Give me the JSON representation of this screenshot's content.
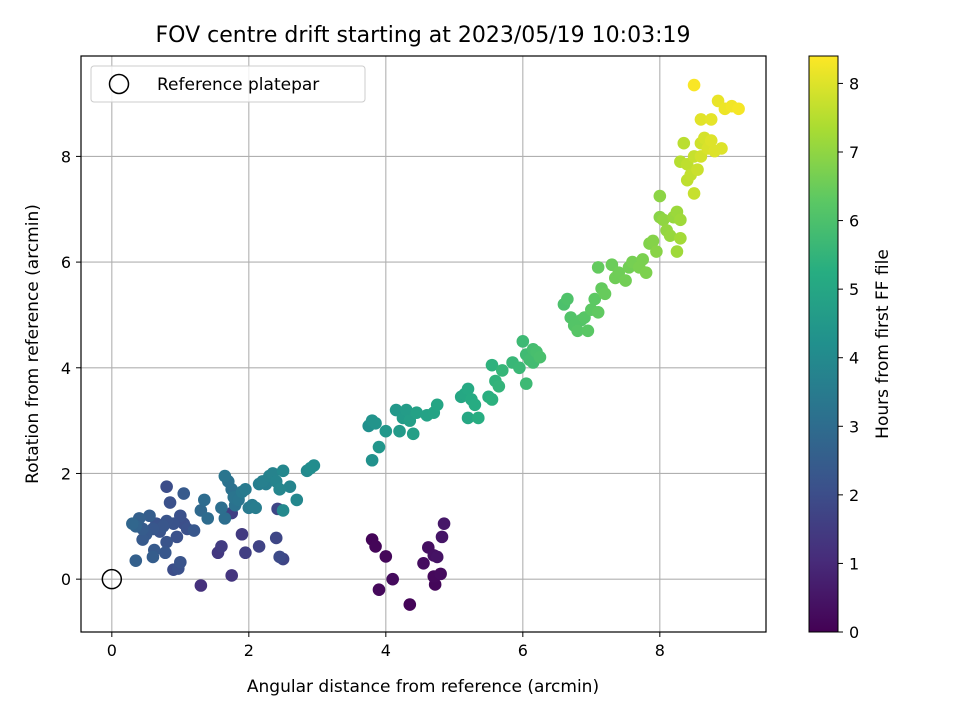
{
  "chart_data": {
    "type": "scatter",
    "title": "FOV centre drift starting at 2023/05/19 10:03:19",
    "xlabel": "Angular distance from reference (arcmin)",
    "ylabel": "Rotation from reference (arcmin)",
    "colorbar_label": "Hours from first FF file",
    "xlim": [
      -0.45,
      9.55
    ],
    "ylim": [
      -1.0,
      9.9
    ],
    "clim": [
      0,
      8.4
    ],
    "xticks": [
      0,
      2,
      4,
      6,
      8
    ],
    "yticks": [
      0,
      2,
      4,
      6,
      8
    ],
    "cticks": [
      0,
      1,
      2,
      3,
      4,
      5,
      6,
      7,
      8
    ],
    "grid": true,
    "colormap": "viridis",
    "legend": {
      "placement": "top-left",
      "entries": [
        {
          "label": "Reference platepar",
          "marker": "open-circle",
          "x": 0,
          "y": 0
        }
      ]
    },
    "points": [
      {
        "x": 3.8,
        "y": 0.75,
        "h": 0.1
      },
      {
        "x": 3.85,
        "y": 0.62,
        "h": 0.12
      },
      {
        "x": 4.0,
        "y": 0.43,
        "h": 0.15
      },
      {
        "x": 3.9,
        "y": -0.2,
        "h": 0.2
      },
      {
        "x": 4.1,
        "y": 0.0,
        "h": 0.25
      },
      {
        "x": 4.35,
        "y": -0.48,
        "h": 0.1
      },
      {
        "x": 4.55,
        "y": 0.3,
        "h": 0.3
      },
      {
        "x": 4.62,
        "y": 0.6,
        "h": 0.35
      },
      {
        "x": 4.7,
        "y": 0.45,
        "h": 0.4
      },
      {
        "x": 4.75,
        "y": 0.42,
        "h": 0.45
      },
      {
        "x": 4.7,
        "y": 0.05,
        "h": 0.2
      },
      {
        "x": 4.72,
        "y": -0.1,
        "h": 0.15
      },
      {
        "x": 4.8,
        "y": 0.1,
        "h": 0.25
      },
      {
        "x": 4.82,
        "y": 0.8,
        "h": 0.5
      },
      {
        "x": 4.85,
        "y": 1.05,
        "h": 0.55
      },
      {
        "x": 1.3,
        "y": -0.12,
        "h": 1.2
      },
      {
        "x": 1.75,
        "y": 0.07,
        "h": 1.3
      },
      {
        "x": 1.55,
        "y": 0.5,
        "h": 1.4
      },
      {
        "x": 1.6,
        "y": 0.62,
        "h": 1.5
      },
      {
        "x": 1.9,
        "y": 0.85,
        "h": 1.45
      },
      {
        "x": 1.95,
        "y": 0.5,
        "h": 1.6
      },
      {
        "x": 2.15,
        "y": 0.62,
        "h": 1.7
      },
      {
        "x": 2.4,
        "y": 0.78,
        "h": 1.8
      },
      {
        "x": 2.45,
        "y": 0.42,
        "h": 1.9
      },
      {
        "x": 2.5,
        "y": 0.38,
        "h": 1.75
      },
      {
        "x": 1.75,
        "y": 1.25,
        "h": 1.6
      },
      {
        "x": 2.42,
        "y": 1.33,
        "h": 1.8
      },
      {
        "x": 0.9,
        "y": 0.18,
        "h": 2.0
      },
      {
        "x": 0.97,
        "y": 0.2,
        "h": 2.1
      },
      {
        "x": 1.0,
        "y": 0.32,
        "h": 2.2
      },
      {
        "x": 0.35,
        "y": 0.35,
        "h": 2.6
      },
      {
        "x": 0.6,
        "y": 0.42,
        "h": 2.5
      },
      {
        "x": 0.62,
        "y": 0.55,
        "h": 2.4
      },
      {
        "x": 0.78,
        "y": 0.5,
        "h": 2.3
      },
      {
        "x": 0.8,
        "y": 0.7,
        "h": 2.2
      },
      {
        "x": 0.95,
        "y": 0.8,
        "h": 2.1
      },
      {
        "x": 0.5,
        "y": 0.85,
        "h": 2.35
      },
      {
        "x": 0.45,
        "y": 0.95,
        "h": 2.45
      },
      {
        "x": 0.35,
        "y": 1.0,
        "h": 2.7
      },
      {
        "x": 0.3,
        "y": 1.05,
        "h": 2.8
      },
      {
        "x": 0.4,
        "y": 1.15,
        "h": 2.6
      },
      {
        "x": 0.55,
        "y": 1.2,
        "h": 2.5
      },
      {
        "x": 0.6,
        "y": 0.95,
        "h": 2.3
      },
      {
        "x": 0.75,
        "y": 1.0,
        "h": 2.25
      },
      {
        "x": 0.8,
        "y": 1.1,
        "h": 2.2
      },
      {
        "x": 0.9,
        "y": 1.05,
        "h": 2.15
      },
      {
        "x": 1.0,
        "y": 1.2,
        "h": 2.1
      },
      {
        "x": 1.05,
        "y": 1.05,
        "h": 2.05
      },
      {
        "x": 1.1,
        "y": 0.95,
        "h": 2.1
      },
      {
        "x": 1.2,
        "y": 0.92,
        "h": 2.3
      },
      {
        "x": 0.85,
        "y": 1.45,
        "h": 2.1
      },
      {
        "x": 0.8,
        "y": 1.75,
        "h": 2.0
      },
      {
        "x": 1.05,
        "y": 1.62,
        "h": 2.4
      },
      {
        "x": 0.7,
        "y": 0.9,
        "h": 2.2
      },
      {
        "x": 0.45,
        "y": 0.75,
        "h": 2.4
      },
      {
        "x": 0.65,
        "y": 1.05,
        "h": 2.15
      },
      {
        "x": 1.3,
        "y": 1.3,
        "h": 2.9
      },
      {
        "x": 1.35,
        "y": 1.5,
        "h": 3.0
      },
      {
        "x": 1.4,
        "y": 1.15,
        "h": 3.0
      },
      {
        "x": 1.6,
        "y": 1.35,
        "h": 3.1
      },
      {
        "x": 1.65,
        "y": 1.15,
        "h": 3.05
      },
      {
        "x": 1.65,
        "y": 1.95,
        "h": 3.3
      },
      {
        "x": 1.7,
        "y": 1.85,
        "h": 3.2
      },
      {
        "x": 1.75,
        "y": 1.7,
        "h": 3.15
      },
      {
        "x": 1.78,
        "y": 1.55,
        "h": 3.25
      },
      {
        "x": 1.85,
        "y": 1.5,
        "h": 3.3
      },
      {
        "x": 1.8,
        "y": 1.4,
        "h": 3.2
      },
      {
        "x": 1.9,
        "y": 1.65,
        "h": 3.4
      },
      {
        "x": 1.95,
        "y": 1.7,
        "h": 3.45
      },
      {
        "x": 2.05,
        "y": 1.4,
        "h": 3.5
      },
      {
        "x": 2.1,
        "y": 1.35,
        "h": 3.55
      },
      {
        "x": 2.15,
        "y": 1.8,
        "h": 3.6
      },
      {
        "x": 2.2,
        "y": 1.85,
        "h": 3.65
      },
      {
        "x": 2.3,
        "y": 1.95,
        "h": 3.7
      },
      {
        "x": 2.35,
        "y": 2.0,
        "h": 3.75
      },
      {
        "x": 2.4,
        "y": 1.85,
        "h": 3.8
      },
      {
        "x": 2.45,
        "y": 1.7,
        "h": 3.85
      },
      {
        "x": 2.5,
        "y": 2.05,
        "h": 3.9
      },
      {
        "x": 2.5,
        "y": 1.3,
        "h": 3.95
      },
      {
        "x": 2.6,
        "y": 1.75,
        "h": 3.8
      },
      {
        "x": 2.7,
        "y": 1.5,
        "h": 3.9
      },
      {
        "x": 2.85,
        "y": 2.05,
        "h": 4.0
      },
      {
        "x": 2.95,
        "y": 2.15,
        "h": 4.05
      },
      {
        "x": 2.9,
        "y": 2.1,
        "h": 4.1
      },
      {
        "x": 2.0,
        "y": 1.35,
        "h": 3.45
      },
      {
        "x": 2.25,
        "y": 1.8,
        "h": 3.6
      },
      {
        "x": 3.75,
        "y": 2.9,
        "h": 4.2
      },
      {
        "x": 3.8,
        "y": 2.25,
        "h": 4.25
      },
      {
        "x": 3.8,
        "y": 3.0,
        "h": 4.3
      },
      {
        "x": 3.85,
        "y": 2.95,
        "h": 4.35
      },
      {
        "x": 3.9,
        "y": 2.5,
        "h": 4.4
      },
      {
        "x": 4.0,
        "y": 2.8,
        "h": 4.45
      },
      {
        "x": 4.15,
        "y": 3.2,
        "h": 4.5
      },
      {
        "x": 4.2,
        "y": 2.8,
        "h": 4.55
      },
      {
        "x": 4.25,
        "y": 3.05,
        "h": 4.6
      },
      {
        "x": 4.3,
        "y": 3.2,
        "h": 4.65
      },
      {
        "x": 4.35,
        "y": 3.0,
        "h": 4.7
      },
      {
        "x": 4.4,
        "y": 2.75,
        "h": 4.75
      },
      {
        "x": 4.45,
        "y": 3.15,
        "h": 4.8
      },
      {
        "x": 4.6,
        "y": 3.1,
        "h": 4.85
      },
      {
        "x": 4.7,
        "y": 3.15,
        "h": 4.9
      },
      {
        "x": 4.75,
        "y": 3.3,
        "h": 4.95
      },
      {
        "x": 5.1,
        "y": 3.45,
        "h": 5.0
      },
      {
        "x": 5.15,
        "y": 3.5,
        "h": 5.05
      },
      {
        "x": 5.2,
        "y": 3.6,
        "h": 5.1
      },
      {
        "x": 5.25,
        "y": 3.4,
        "h": 5.15
      },
      {
        "x": 5.3,
        "y": 3.3,
        "h": 5.2
      },
      {
        "x": 5.2,
        "y": 3.05,
        "h": 5.05
      },
      {
        "x": 5.35,
        "y": 3.05,
        "h": 5.25
      },
      {
        "x": 5.5,
        "y": 3.45,
        "h": 5.3
      },
      {
        "x": 5.55,
        "y": 3.4,
        "h": 5.35
      },
      {
        "x": 5.55,
        "y": 4.05,
        "h": 5.4
      },
      {
        "x": 5.6,
        "y": 3.75,
        "h": 5.45
      },
      {
        "x": 5.65,
        "y": 3.65,
        "h": 5.5
      },
      {
        "x": 5.7,
        "y": 3.95,
        "h": 5.55
      },
      {
        "x": 5.85,
        "y": 4.1,
        "h": 5.6
      },
      {
        "x": 5.95,
        "y": 4.0,
        "h": 5.65
      },
      {
        "x": 6.0,
        "y": 4.5,
        "h": 5.7
      },
      {
        "x": 6.05,
        "y": 4.25,
        "h": 5.75
      },
      {
        "x": 6.1,
        "y": 4.15,
        "h": 5.8
      },
      {
        "x": 6.15,
        "y": 4.35,
        "h": 5.85
      },
      {
        "x": 6.2,
        "y": 4.3,
        "h": 5.9
      },
      {
        "x": 6.25,
        "y": 4.2,
        "h": 5.95
      },
      {
        "x": 6.05,
        "y": 3.7,
        "h": 5.7
      },
      {
        "x": 6.15,
        "y": 4.1,
        "h": 5.8
      },
      {
        "x": 6.6,
        "y": 5.2,
        "h": 6.0
      },
      {
        "x": 6.65,
        "y": 5.3,
        "h": 6.05
      },
      {
        "x": 6.7,
        "y": 4.95,
        "h": 6.1
      },
      {
        "x": 6.75,
        "y": 4.8,
        "h": 6.15
      },
      {
        "x": 6.8,
        "y": 4.7,
        "h": 6.2
      },
      {
        "x": 6.85,
        "y": 4.9,
        "h": 6.15
      },
      {
        "x": 6.9,
        "y": 4.95,
        "h": 6.2
      },
      {
        "x": 6.95,
        "y": 4.7,
        "h": 6.25
      },
      {
        "x": 7.0,
        "y": 5.1,
        "h": 6.3
      },
      {
        "x": 7.05,
        "y": 5.3,
        "h": 6.3
      },
      {
        "x": 7.1,
        "y": 5.05,
        "h": 6.35
      },
      {
        "x": 7.15,
        "y": 5.5,
        "h": 6.4
      },
      {
        "x": 7.2,
        "y": 5.4,
        "h": 6.45
      },
      {
        "x": 7.1,
        "y": 5.9,
        "h": 6.4
      },
      {
        "x": 7.3,
        "y": 5.95,
        "h": 6.5
      },
      {
        "x": 7.35,
        "y": 5.7,
        "h": 6.55
      },
      {
        "x": 7.4,
        "y": 5.8,
        "h": 6.55
      },
      {
        "x": 7.5,
        "y": 5.65,
        "h": 6.6
      },
      {
        "x": 7.55,
        "y": 5.9,
        "h": 6.6
      },
      {
        "x": 7.6,
        "y": 6.0,
        "h": 6.65
      },
      {
        "x": 7.7,
        "y": 5.9,
        "h": 6.7
      },
      {
        "x": 7.75,
        "y": 6.05,
        "h": 6.7
      },
      {
        "x": 7.8,
        "y": 5.8,
        "h": 6.75
      },
      {
        "x": 7.85,
        "y": 6.35,
        "h": 6.8
      },
      {
        "x": 7.9,
        "y": 6.4,
        "h": 6.85
      },
      {
        "x": 7.95,
        "y": 6.2,
        "h": 6.9
      },
      {
        "x": 8.0,
        "y": 7.25,
        "h": 6.95
      },
      {
        "x": 8.0,
        "y": 6.85,
        "h": 6.9
      },
      {
        "x": 8.05,
        "y": 6.8,
        "h": 7.0
      },
      {
        "x": 8.1,
        "y": 6.6,
        "h": 7.05
      },
      {
        "x": 8.15,
        "y": 6.5,
        "h": 7.1
      },
      {
        "x": 8.2,
        "y": 6.85,
        "h": 7.1
      },
      {
        "x": 8.25,
        "y": 6.95,
        "h": 7.15
      },
      {
        "x": 8.3,
        "y": 6.8,
        "h": 7.2
      },
      {
        "x": 8.25,
        "y": 6.2,
        "h": 7.2
      },
      {
        "x": 8.3,
        "y": 6.45,
        "h": 7.25
      },
      {
        "x": 8.3,
        "y": 7.9,
        "h": 7.5
      },
      {
        "x": 8.35,
        "y": 8.25,
        "h": 7.55
      },
      {
        "x": 8.4,
        "y": 7.55,
        "h": 7.6
      },
      {
        "x": 8.4,
        "y": 7.85,
        "h": 7.6
      },
      {
        "x": 8.45,
        "y": 7.65,
        "h": 7.65
      },
      {
        "x": 8.5,
        "y": 7.3,
        "h": 7.7
      },
      {
        "x": 8.5,
        "y": 8.0,
        "h": 7.7
      },
      {
        "x": 8.55,
        "y": 7.75,
        "h": 7.75
      },
      {
        "x": 8.6,
        "y": 8.25,
        "h": 7.8
      },
      {
        "x": 8.6,
        "y": 8.0,
        "h": 7.85
      },
      {
        "x": 8.65,
        "y": 8.35,
        "h": 7.9
      },
      {
        "x": 8.7,
        "y": 8.15,
        "h": 7.95
      },
      {
        "x": 8.75,
        "y": 8.3,
        "h": 8.0
      },
      {
        "x": 8.8,
        "y": 8.1,
        "h": 8.0
      },
      {
        "x": 8.6,
        "y": 8.7,
        "h": 8.05
      },
      {
        "x": 8.75,
        "y": 8.7,
        "h": 8.1
      },
      {
        "x": 8.85,
        "y": 9.05,
        "h": 8.15
      },
      {
        "x": 8.9,
        "y": 8.15,
        "h": 8.0
      },
      {
        "x": 8.95,
        "y": 8.9,
        "h": 8.2
      },
      {
        "x": 9.05,
        "y": 8.95,
        "h": 8.25
      },
      {
        "x": 9.15,
        "y": 8.9,
        "h": 8.3
      },
      {
        "x": 8.5,
        "y": 9.35,
        "h": 8.35
      }
    ]
  }
}
